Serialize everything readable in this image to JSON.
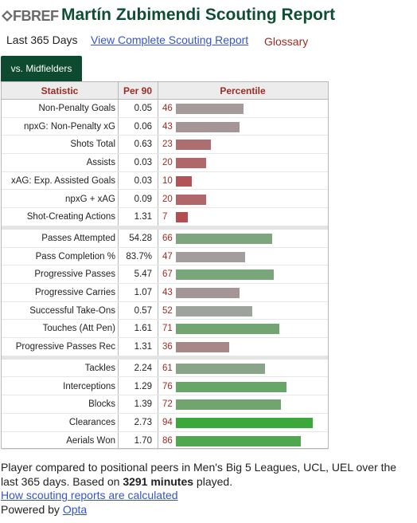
{
  "header": {
    "logo_text": "FBREF",
    "title": "Martín Zubimendi Scouting Report"
  },
  "links": {
    "period": "Last 365 Days",
    "view_complete": "View Complete Scouting Report",
    "glossary": "Glossary"
  },
  "tab_label": "vs. Midfielders",
  "table": {
    "headers": {
      "statistic": "Statistic",
      "per90": "Per 90",
      "percentile": "Percentile"
    },
    "groups": [
      [
        {
          "stat": "Non-Penalty Goals",
          "per90": "0.05",
          "percentile": 46
        },
        {
          "stat": "npxG: Non-Penalty xG",
          "per90": "0.06",
          "percentile": 43
        },
        {
          "stat": "Shots Total",
          "per90": "0.63",
          "percentile": 23
        },
        {
          "stat": "Assists",
          "per90": "0.03",
          "percentile": 20
        },
        {
          "stat": "xAG: Exp. Assisted Goals",
          "per90": "0.03",
          "percentile": 10
        },
        {
          "stat": "npxG + xAG",
          "per90": "0.09",
          "percentile": 20
        },
        {
          "stat": "Shot-Creating Actions",
          "per90": "1.31",
          "percentile": 7
        }
      ],
      [
        {
          "stat": "Passes Attempted",
          "per90": "54.28",
          "percentile": 66
        },
        {
          "stat": "Pass Completion %",
          "per90": "83.7%",
          "percentile": 47
        },
        {
          "stat": "Progressive Passes",
          "per90": "5.47",
          "percentile": 67
        },
        {
          "stat": "Progressive Carries",
          "per90": "1.07",
          "percentile": 43
        },
        {
          "stat": "Successful Take-Ons",
          "per90": "0.57",
          "percentile": 52
        },
        {
          "stat": "Touches (Att Pen)",
          "per90": "1.61",
          "percentile": 71
        },
        {
          "stat": "Progressive Passes Rec",
          "per90": "1.31",
          "percentile": 36
        }
      ],
      [
        {
          "stat": "Tackles",
          "per90": "2.24",
          "percentile": 61
        },
        {
          "stat": "Interceptions",
          "per90": "1.29",
          "percentile": 76
        },
        {
          "stat": "Blocks",
          "per90": "1.39",
          "percentile": 72
        },
        {
          "stat": "Clearances",
          "per90": "2.73",
          "percentile": 94
        },
        {
          "stat": "Aerials Won",
          "per90": "1.70",
          "percentile": 86
        }
      ]
    ]
  },
  "colors": {
    "title_green": "#0f4e35",
    "tab_green": "#0d4a30",
    "header_red": "#9e2b23",
    "link_blue": "#3454c8",
    "bar_low": "#b5494e",
    "bar_mid": "#a3a3a3",
    "bar_high": "#3aa83a"
  },
  "footer": {
    "line1_pre": "Player compared to positional peers in Men's Big 5 Leagues, UCL, UEL over the last 365 days. Based on ",
    "minutes": "3291 minutes",
    "line1_post": " played.",
    "how_link": "How scouting reports are calculated",
    "powered_by": "Powered by ",
    "opta": "Opta"
  }
}
